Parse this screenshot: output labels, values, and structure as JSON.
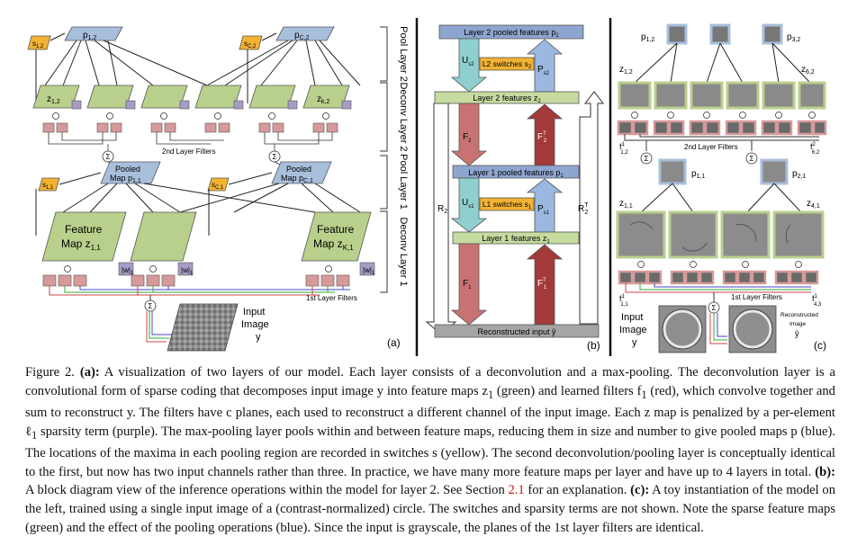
{
  "panel_a": {
    "tag": "(a)",
    "side_labels": [
      "Pool Layer 2",
      "Deconv Layer 2",
      "Pool Layer 1",
      "Deconv Layer 1"
    ],
    "pool2_left_sub": "p",
    "pool2_left_subscript": "1,2",
    "pool2_right_sub": "p",
    "pool2_right_subscript": "C,2",
    "switch2_left": "s",
    "switch2_left_sub": "1,2",
    "switch2_right": "s",
    "switch2_right_sub": "C,2",
    "z2_left": "z",
    "z2_left_sub": "1,2",
    "z2_right": "z",
    "z2_right_sub": "k,2",
    "filters2_label": "2nd Layer Filters",
    "pooled1_left_line1": "Pooled",
    "pooled1_left_line2": "Map p",
    "pooled1_left_sub": "1,1",
    "pooled1_right_line1": "Pooled",
    "pooled1_right_line2": "Map p",
    "pooled1_right_sub": "C,1",
    "switch1_left": "s",
    "switch1_left_sub": "1,1",
    "switch1_right": "s",
    "switch1_right_sub": "C,1",
    "feat_left_line1": "Feature",
    "feat_left_line2": "Map z",
    "feat_left_sub": "1,1",
    "feat_right_line1": "Feature",
    "feat_right_line2": "Map z",
    "feat_right_sub": "K,1",
    "w_label": "|w|",
    "w_sub": "1",
    "filters1_label": "1st Layer Filters",
    "input_line1": "Input",
    "input_line2": "Image",
    "input_line3": "y"
  },
  "panel_b": {
    "tag": "(b)",
    "l2_pooled": "Layer 2 pooled features  p",
    "l2_pooled_sub": "2",
    "l2_switches": "L2 switches  s",
    "l2_switches_sub": "2",
    "u_s2": "U",
    "u_s2_sub": "s2",
    "p_s2": "P",
    "p_s2_sub": "s2",
    "l2_features": "Layer 2 features   z",
    "l2_features_sub": "2",
    "f2": "F",
    "f2_sub": "2",
    "f2t": "F",
    "f2t_sup": "T",
    "f2t_sub": "2",
    "r2": "R",
    "r2_sub": "2",
    "r2t": "R",
    "r2t_sup": "T",
    "r2t_sub": "2",
    "l1_pooled": "Layer 1 pooled features   p",
    "l1_pooled_sub": "1",
    "l1_switches": "L1 switches  s",
    "l1_switches_sub": "1",
    "u_s1": "U",
    "u_s1_sub": "s1",
    "p_s1": "P",
    "p_s1_sub": "s1",
    "l1_features": "Layer 1 features   z",
    "l1_features_sub": "1",
    "f1": "F",
    "f1_sub": "1",
    "f1t": "F",
    "f1t_sup": "T",
    "f1t_sub": "1",
    "reconstructed": "Reconstructed input  ŷ"
  },
  "panel_c": {
    "tag": "(c)",
    "p12": "p",
    "p12_sub": "1,2",
    "p32": "p",
    "p32_sub": "3,2",
    "z12": "z",
    "z12_sub": "1,2",
    "z62": "z",
    "z62_sub": "6,2",
    "f12": "f",
    "f12_sup": "1",
    "f12_sub": "1,2",
    "f62": "f",
    "f62_sup": "2",
    "f62_sub": "6,2",
    "filters2_label": "2nd Layer Filters",
    "p11": "p",
    "p11_sub": "1,1",
    "p21": "p",
    "p21_sub": "2,1",
    "z11": "z",
    "z11_sub": "1,1",
    "z41": "z",
    "z41_sub": "4,1",
    "f11": "f",
    "f11_sup": "1",
    "f11_sub": "1,1",
    "f43": "f",
    "f43_sup": "1",
    "f43_sub": "4,3",
    "filters1_label": "1st Layer Filters",
    "input_line1": "Input",
    "input_line2": "Image",
    "input_line3": "y",
    "recon_line1": "Reconstructed",
    "recon_line2": "Image",
    "recon_line3": "ŷ"
  },
  "caption": {
    "fig": "Figure 2.",
    "a_tag": "(a):",
    "a_text": " A visualization of two layers of our model. Each layer consists of a deconvolution and a max-pooling. The deconvolution layer is a convolutional form of sparse coding that decomposes input image y into feature maps z",
    "a_text2": " (green) and learned filters f",
    "a_text3": " (red), which convolve together and sum to reconstruct y. The filters have c planes, each used to reconstruct a different channel of the input image. Each z map is penalized by a per-element ℓ",
    "a_text4": " sparsity term (purple). The max-pooling layer pools within and between feature maps, reducing them in size and number to give pooled maps p (blue). The locations of the maxima in each pooling region are recorded in switches s (yellow). The second deconvolution/pooling layer is conceptually identical to the first, but now has two input channels rather than three. In practice, we have many more feature maps per layer and have up to 4 layers in total. ",
    "b_tag": "(b):",
    "b_text": " A block diagram view of the inference operations within the model for layer 2. See Section ",
    "b_ref": "2.1",
    "b_text2": " for an explanation. ",
    "c_tag": "(c):",
    "c_text": " A toy instantiation of the model on the left, trained using a single input image of a (contrast-normalized) circle. The switches and sparsity terms are not shown. Note the sparse feature maps (green) and the effect of the pooling operations (blue). Since the input is grayscale, the planes of the 1st layer filters are identical.",
    "sub1": "1"
  },
  "colors": {
    "pool_blue": "#a8bfdc",
    "switch_yellow": "#f2b233",
    "feature_green": "#b9cf8c",
    "filter_red": "#d79a9a",
    "sparsity_purple": "#a69cc5",
    "block_blue": "#8ea6cf",
    "block_green": "#c6dba0",
    "arrow_red": "#c87373",
    "arrow_dark_red": "#a33a3a",
    "arrow_teal": "#8fcfd0",
    "arrow_blue": "#9bb8e0"
  }
}
